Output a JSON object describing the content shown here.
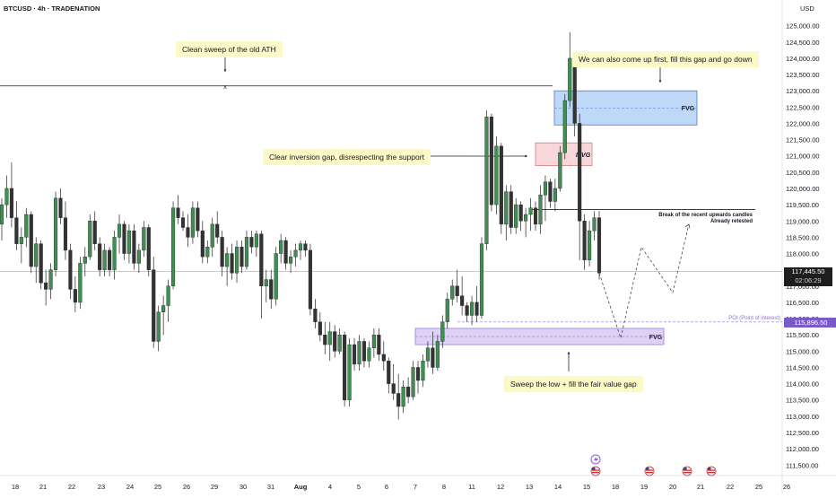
{
  "header": {
    "symbol_line": "BTCUSD · 4h · TRADENATION",
    "currency": "USD"
  },
  "colors": {
    "up_body": "#3f8f52",
    "up_wick": "#222222",
    "down_body": "#333333",
    "fvg_blue_fill": "#b9d4f7",
    "fvg_blue_stroke": "#4a7dd1",
    "ifvg_fill": "#f6d3d6",
    "ifvg_stroke": "#d97b82",
    "fvg_purple_fill": "#d9cdf5",
    "fvg_purple_stroke": "#9b7fe0",
    "poi_color": "#8f6fd8",
    "current_price_bg": "#1e1e1e",
    "poi_tag_bg": "#7a59c9"
  },
  "annotations": {
    "ath_sweep": "Clean sweep of the old ATH",
    "gap_note": "We can also come up first, fill this gap and go down",
    "inversion_gap": "Clear inversion gap, disrespecting the support",
    "sweep_low": "Sweep the low + fill the fair value gap",
    "break_line1": "Break of the recent upwards candles",
    "break_line2": "Already retested",
    "fvg_top_label": "FVG",
    "ifvg_label": "IFVG",
    "fvg_bottom_label": "FVG",
    "poi_label": "POI (Point of interest)",
    "x_marker": "x"
  },
  "price_tags": {
    "current_price": "117,445.50",
    "countdown": "02:06:29",
    "poi_price": "115,896.50"
  },
  "chart_data": {
    "type": "candlestick",
    "title": "BTCUSD · 4h · TRADENATION",
    "ylabel": "USD",
    "ylim": [
      111200,
      125600
    ],
    "y_ticks": [
      111500,
      112000,
      112500,
      113000,
      113500,
      114000,
      114500,
      115000,
      115500,
      116000,
      116500,
      117000,
      117500,
      118000,
      118500,
      119000,
      119500,
      120000,
      120500,
      121000,
      121500,
      122000,
      122500,
      123000,
      123500,
      124000,
      124500,
      125000
    ],
    "y_tick_labels": [
      "111,500.00",
      "112,000.00",
      "112,500.00",
      "113,000.00",
      "113,500.00",
      "114,000.00",
      "114,500.00",
      "115,000.00",
      "115,500.00",
      "116,000.00",
      "116,500.00",
      "117,000.00",
      "117,500.00",
      "118,000.00",
      "118,500.00",
      "119,000.00",
      "119,500.00",
      "120,000.00",
      "120,500.00",
      "121,000.00",
      "121,500.00",
      "122,000.00",
      "122,500.00",
      "123,000.00",
      "123,500.00",
      "124,000.00",
      "124,500.00",
      "125,000.00"
    ],
    "x_tick_labels": [
      "18",
      "21",
      "22",
      "23",
      "24",
      "25",
      "26",
      "29",
      "30",
      "31",
      "Aug",
      "4",
      "5",
      "6",
      "7",
      "8",
      "11",
      "12",
      "13",
      "14",
      "15",
      "18",
      "19",
      "20",
      "21",
      "22",
      "25",
      "26"
    ],
    "x_tick_positions": [
      17,
      48,
      80,
      113,
      145,
      176,
      208,
      239,
      271,
      302,
      335,
      368,
      400,
      431,
      463,
      495,
      526,
      558,
      590,
      622,
      654,
      686,
      718,
      750,
      781,
      814,
      846,
      877
    ],
    "candle_span_x": [
      2,
      668
    ],
    "candles": [
      [
        118900,
        119700,
        118400,
        119500
      ],
      [
        119500,
        120400,
        119100,
        120000
      ],
      [
        120000,
        120800,
        118800,
        119100
      ],
      [
        119100,
        119600,
        118100,
        118300
      ],
      [
        118300,
        118800,
        117700,
        118500
      ],
      [
        118500,
        119400,
        118200,
        119200
      ],
      [
        119200,
        119300,
        117400,
        117600
      ],
      [
        117600,
        118500,
        117100,
        118300
      ],
      [
        118300,
        118400,
        116900,
        117100
      ],
      [
        117100,
        117500,
        116400,
        116900
      ],
      [
        116900,
        117700,
        116600,
        117500
      ],
      [
        117500,
        119900,
        117300,
        119700
      ],
      [
        119700,
        120000,
        118900,
        119100
      ],
      [
        119100,
        119600,
        117800,
        118100
      ],
      [
        118100,
        118300,
        116600,
        116900
      ],
      [
        116900,
        117300,
        116200,
        116500
      ],
      [
        116500,
        117900,
        116300,
        117700
      ],
      [
        117700,
        118200,
        117300,
        117900
      ],
      [
        117900,
        119200,
        117800,
        119000
      ],
      [
        119000,
        119300,
        118100,
        118300
      ],
      [
        118300,
        118500,
        117300,
        117500
      ],
      [
        117500,
        118300,
        117300,
        118100
      ],
      [
        118100,
        118200,
        117300,
        117500
      ],
      [
        117500,
        118700,
        117200,
        118500
      ],
      [
        118500,
        119200,
        118000,
        118900
      ],
      [
        118900,
        119000,
        117800,
        118000
      ],
      [
        118000,
        118900,
        117700,
        118700
      ],
      [
        118700,
        118900,
        117500,
        117700
      ],
      [
        117700,
        118300,
        117400,
        118100
      ],
      [
        118100,
        119000,
        117900,
        118800
      ],
      [
        118800,
        118900,
        117300,
        117500
      ],
      [
        117500,
        117900,
        115100,
        115300
      ],
      [
        115300,
        116400,
        115000,
        116200
      ],
      [
        116200,
        116700,
        115500,
        116400
      ],
      [
        116400,
        117200,
        115900,
        117000
      ],
      [
        117000,
        119600,
        116900,
        119400
      ],
      [
        119400,
        119800,
        118900,
        119100
      ],
      [
        119100,
        119300,
        118700,
        118800
      ],
      [
        118800,
        119200,
        118200,
        118500
      ],
      [
        118500,
        119600,
        118300,
        119400
      ],
      [
        119400,
        119600,
        118500,
        118700
      ],
      [
        118700,
        119000,
        117700,
        117900
      ],
      [
        117900,
        118400,
        117700,
        118200
      ],
      [
        118200,
        119100,
        117900,
        118900
      ],
      [
        118900,
        119300,
        118300,
        118500
      ],
      [
        118500,
        118700,
        117300,
        117600
      ],
      [
        117600,
        118200,
        117000,
        118000
      ],
      [
        118000,
        118300,
        117200,
        117400
      ],
      [
        117400,
        118400,
        117100,
        118200
      ],
      [
        118200,
        118400,
        117400,
        117600
      ],
      [
        117600,
        118700,
        117500,
        118500
      ],
      [
        118500,
        118700,
        118000,
        118200
      ],
      [
        118200,
        118700,
        117900,
        118600
      ],
      [
        118600,
        118700,
        116000,
        117000
      ],
      [
        117000,
        117500,
        116500,
        117200
      ],
      [
        117200,
        117500,
        116300,
        116600
      ],
      [
        116600,
        118200,
        116400,
        118000
      ],
      [
        118000,
        118600,
        117700,
        118400
      ],
      [
        118400,
        118500,
        117500,
        117700
      ],
      [
        117700,
        118100,
        117400,
        117900
      ],
      [
        117900,
        118300,
        117600,
        118100
      ],
      [
        118100,
        118400,
        117800,
        118300
      ],
      [
        118300,
        118400,
        117900,
        118100
      ],
      [
        118100,
        118300,
        116100,
        116300
      ],
      [
        116300,
        116600,
        115700,
        115900
      ],
      [
        115900,
        116200,
        115300,
        115500
      ],
      [
        115500,
        115900,
        114900,
        115200
      ],
      [
        115200,
        115900,
        114700,
        115600
      ],
      [
        115600,
        115800,
        114800,
        115000
      ],
      [
        115000,
        115700,
        114900,
        115500
      ],
      [
        115500,
        115600,
        113300,
        113500
      ],
      [
        113500,
        115400,
        113300,
        115200
      ],
      [
        115200,
        115400,
        114400,
        114600
      ],
      [
        114600,
        115500,
        114400,
        115300
      ],
      [
        115300,
        115400,
        114500,
        114700
      ],
      [
        114700,
        115300,
        114500,
        115100
      ],
      [
        115100,
        115700,
        114800,
        115500
      ],
      [
        115500,
        115700,
        114700,
        114900
      ],
      [
        114900,
        115300,
        114400,
        114700
      ],
      [
        114700,
        114800,
        113700,
        114000
      ],
      [
        114000,
        114600,
        113500,
        113700
      ],
      [
        113700,
        114300,
        112900,
        113300
      ],
      [
        113300,
        114100,
        113100,
        113900
      ],
      [
        113900,
        114200,
        113400,
        113600
      ],
      [
        113600,
        114700,
        113500,
        114500
      ],
      [
        114500,
        114700,
        113700,
        114100
      ],
      [
        114100,
        114900,
        113900,
        114700
      ],
      [
        114700,
        115300,
        114500,
        115100
      ],
      [
        115100,
        115600,
        114300,
        114500
      ],
      [
        114500,
        115500,
        114400,
        115300
      ],
      [
        115300,
        116100,
        115100,
        115900
      ],
      [
        115900,
        116800,
        115700,
        116600
      ],
      [
        116600,
        117200,
        116400,
        117000
      ],
      [
        117000,
        117500,
        116500,
        116700
      ],
      [
        116700,
        117300,
        116100,
        116400
      ],
      [
        116400,
        116500,
        115900,
        116100
      ],
      [
        116100,
        116700,
        115800,
        116500
      ],
      [
        116500,
        117000,
        115900,
        116100
      ],
      [
        116100,
        118500,
        116000,
        118300
      ],
      [
        118300,
        122400,
        118100,
        122200
      ],
      [
        122200,
        122300,
        119300,
        119500
      ],
      [
        119500,
        121600,
        119200,
        121300
      ],
      [
        121300,
        121400,
        118600,
        118900
      ],
      [
        118900,
        120100,
        118400,
        119900
      ],
      [
        119900,
        120100,
        118600,
        118800
      ],
      [
        118800,
        119700,
        118600,
        119500
      ],
      [
        119500,
        119600,
        118700,
        119000
      ],
      [
        119000,
        119400,
        118500,
        119200
      ],
      [
        119200,
        119700,
        118700,
        119400
      ],
      [
        119400,
        119600,
        118700,
        118900
      ],
      [
        118900,
        120100,
        118600,
        119800
      ],
      [
        119800,
        120400,
        119000,
        120200
      ],
      [
        120200,
        120300,
        119400,
        119600
      ],
      [
        119600,
        120300,
        119300,
        120000
      ],
      [
        120000,
        121300,
        119900,
        121100
      ],
      [
        121100,
        122900,
        120900,
        122700
      ],
      [
        122700,
        124800,
        122500,
        124000
      ],
      [
        124000,
        124200,
        121600,
        122000
      ],
      [
        122000,
        122300,
        117800,
        119000
      ],
      [
        119000,
        119200,
        117500,
        117800
      ],
      [
        117800,
        119000,
        117600,
        118700
      ],
      [
        118700,
        119300,
        118400,
        119100
      ],
      [
        119100,
        119300,
        117200,
        117400
      ]
    ],
    "zones": [
      {
        "label": "FVG",
        "from": 123000,
        "to": 121950
      },
      {
        "label": "IFVG",
        "from": 121400,
        "to": 120700
      },
      {
        "label": "FVG",
        "from": 115700,
        "to": 115200
      }
    ],
    "levels": [
      {
        "name": "old ATH",
        "value": 123150
      },
      {
        "name": "support",
        "value": 119350
      },
      {
        "name": "POI (Point of interest)",
        "value": 115896.5
      },
      {
        "name": "current price",
        "value": 117445.5
      }
    ],
    "projected_path": [
      117400,
      115400,
      118200,
      116800,
      118900
    ]
  }
}
